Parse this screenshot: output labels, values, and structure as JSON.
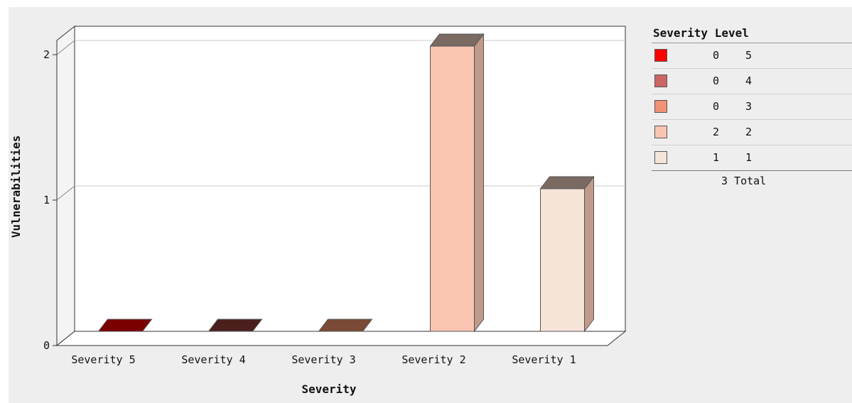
{
  "chart_data": {
    "type": "bar",
    "xlabel": "Severity",
    "ylabel": "Vulnerabilities",
    "categories": [
      "Severity 5",
      "Severity 4",
      "Severity 3",
      "Severity 2",
      "Severity 1"
    ],
    "values": [
      0,
      0,
      0,
      2,
      1
    ],
    "ylim": [
      0,
      2
    ],
    "y_ticks": [
      "0",
      "1",
      "2"
    ],
    "grid": true,
    "style": "3d",
    "bar_colors": [
      "#7a0000",
      "#4a1f1c",
      "#7a4a36",
      "#f9c5b1",
      "#f5e4d8"
    ],
    "legend_position": "right"
  },
  "legend": {
    "title": "Severity Level",
    "rows": [
      {
        "color": "#ff0000",
        "count": "0",
        "level": "5"
      },
      {
        "color": "#cc6666",
        "count": "0",
        "level": "4"
      },
      {
        "color": "#f29275",
        "count": "0",
        "level": "3"
      },
      {
        "color": "#f9c5b1",
        "count": "2",
        "level": "2"
      },
      {
        "color": "#f5e4d8",
        "count": "1",
        "level": "1"
      }
    ],
    "total": "3 Total"
  }
}
